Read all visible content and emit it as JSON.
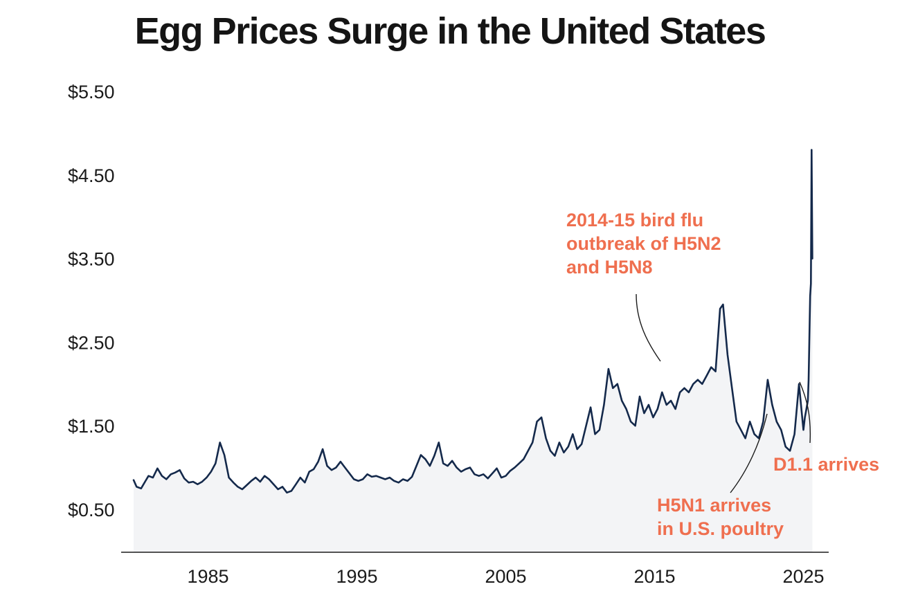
{
  "title": "Egg Prices Surge in the United States",
  "colors": {
    "line": "#14294b",
    "area": "#f3f4f6",
    "annotation": "#ef6f4f",
    "axis": "#1a1a1a"
  },
  "chart_data": {
    "type": "area",
    "title": "Egg Prices Surge in the United States",
    "xlabel": "",
    "ylabel": "",
    "xlim": [
      1980,
      2025.6
    ],
    "ylim": [
      0.0,
      5.9
    ],
    "xticks": [
      1985,
      1995,
      2005,
      2015,
      2025
    ],
    "xtick_labels": [
      "1985",
      "1995",
      "2005",
      "2015",
      "2025"
    ],
    "yticks": [
      0.5,
      1.5,
      2.5,
      3.5,
      4.5,
      5.5
    ],
    "ytick_labels": [
      "$0.50",
      "$1.50",
      "$2.50",
      "$3.50",
      "$4.50",
      "$5.50"
    ],
    "grid": false,
    "legend": "none",
    "series": [
      {
        "points": [
          [
            1980.0,
            0.85
          ],
          [
            1980.2,
            0.77
          ],
          [
            1980.5,
            0.75
          ],
          [
            1980.8,
            0.84
          ],
          [
            1981.0,
            0.9
          ],
          [
            1981.3,
            0.88
          ],
          [
            1981.6,
            0.99
          ],
          [
            1981.9,
            0.9
          ],
          [
            1982.2,
            0.86
          ],
          [
            1982.5,
            0.92
          ],
          [
            1982.8,
            0.94
          ],
          [
            1983.1,
            0.97
          ],
          [
            1983.4,
            0.87
          ],
          [
            1983.7,
            0.82
          ],
          [
            1984.0,
            0.83
          ],
          [
            1984.3,
            0.8
          ],
          [
            1984.6,
            0.83
          ],
          [
            1984.9,
            0.88
          ],
          [
            1985.2,
            0.95
          ],
          [
            1985.5,
            1.05
          ],
          [
            1985.8,
            1.3
          ],
          [
            1986.1,
            1.15
          ],
          [
            1986.4,
            0.88
          ],
          [
            1986.7,
            0.82
          ],
          [
            1987.0,
            0.77
          ],
          [
            1987.3,
            0.74
          ],
          [
            1987.6,
            0.79
          ],
          [
            1987.9,
            0.84
          ],
          [
            1988.2,
            0.88
          ],
          [
            1988.5,
            0.83
          ],
          [
            1988.8,
            0.9
          ],
          [
            1989.1,
            0.86
          ],
          [
            1989.4,
            0.8
          ],
          [
            1989.7,
            0.74
          ],
          [
            1990.0,
            0.77
          ],
          [
            1990.3,
            0.7
          ],
          [
            1990.6,
            0.72
          ],
          [
            1990.9,
            0.8
          ],
          [
            1991.2,
            0.88
          ],
          [
            1991.5,
            0.82
          ],
          [
            1991.8,
            0.95
          ],
          [
            1992.1,
            0.98
          ],
          [
            1992.4,
            1.07
          ],
          [
            1992.7,
            1.22
          ],
          [
            1993.0,
            1.02
          ],
          [
            1993.3,
            0.97
          ],
          [
            1993.6,
            1.0
          ],
          [
            1993.9,
            1.07
          ],
          [
            1994.2,
            1.0
          ],
          [
            1994.5,
            0.93
          ],
          [
            1994.8,
            0.86
          ],
          [
            1995.1,
            0.84
          ],
          [
            1995.4,
            0.86
          ],
          [
            1995.7,
            0.92
          ],
          [
            1996.0,
            0.89
          ],
          [
            1996.3,
            0.9
          ],
          [
            1996.6,
            0.88
          ],
          [
            1996.9,
            0.86
          ],
          [
            1997.2,
            0.88
          ],
          [
            1997.5,
            0.84
          ],
          [
            1997.8,
            0.82
          ],
          [
            1998.1,
            0.86
          ],
          [
            1998.4,
            0.84
          ],
          [
            1998.7,
            0.89
          ],
          [
            1999.0,
            1.02
          ],
          [
            1999.3,
            1.15
          ],
          [
            1999.6,
            1.1
          ],
          [
            1999.9,
            1.02
          ],
          [
            2000.2,
            1.14
          ],
          [
            2000.5,
            1.3
          ],
          [
            2000.8,
            1.05
          ],
          [
            2001.1,
            1.02
          ],
          [
            2001.4,
            1.08
          ],
          [
            2001.7,
            1.0
          ],
          [
            2002.0,
            0.95
          ],
          [
            2002.3,
            0.98
          ],
          [
            2002.6,
            1.0
          ],
          [
            2002.9,
            0.92
          ],
          [
            2003.2,
            0.9
          ],
          [
            2003.5,
            0.92
          ],
          [
            2003.8,
            0.87
          ],
          [
            2004.1,
            0.93
          ],
          [
            2004.4,
            0.99
          ],
          [
            2004.7,
            0.88
          ],
          [
            2005.0,
            0.9
          ],
          [
            2005.3,
            0.96
          ],
          [
            2005.6,
            1.0
          ],
          [
            2005.9,
            1.05
          ],
          [
            2006.2,
            1.1
          ],
          [
            2006.5,
            1.2
          ],
          [
            2006.8,
            1.3
          ],
          [
            2007.1,
            1.55
          ],
          [
            2007.4,
            1.6
          ],
          [
            2007.7,
            1.35
          ],
          [
            2008.0,
            1.2
          ],
          [
            2008.3,
            1.14
          ],
          [
            2008.6,
            1.3
          ],
          [
            2008.9,
            1.18
          ],
          [
            2009.2,
            1.25
          ],
          [
            2009.5,
            1.4
          ],
          [
            2009.8,
            1.22
          ],
          [
            2010.1,
            1.28
          ],
          [
            2010.4,
            1.5
          ],
          [
            2010.7,
            1.72
          ],
          [
            2011.0,
            1.4
          ],
          [
            2011.3,
            1.45
          ],
          [
            2011.6,
            1.75
          ],
          [
            2011.9,
            2.18
          ],
          [
            2012.2,
            1.95
          ],
          [
            2012.5,
            2.0
          ],
          [
            2012.8,
            1.8
          ],
          [
            2013.1,
            1.7
          ],
          [
            2013.4,
            1.55
          ],
          [
            2013.7,
            1.5
          ],
          [
            2014.0,
            1.85
          ],
          [
            2014.3,
            1.65
          ],
          [
            2014.6,
            1.75
          ],
          [
            2014.9,
            1.6
          ],
          [
            2015.2,
            1.7
          ],
          [
            2015.5,
            1.9
          ],
          [
            2015.8,
            1.75
          ],
          [
            2016.1,
            1.8
          ],
          [
            2016.4,
            1.7
          ],
          [
            2016.7,
            1.9
          ],
          [
            2017.0,
            1.95
          ],
          [
            2017.3,
            1.9
          ],
          [
            2017.6,
            2.0
          ],
          [
            2017.9,
            2.05
          ],
          [
            2018.2,
            2.0
          ],
          [
            2018.5,
            2.1
          ],
          [
            2018.8,
            2.2
          ],
          [
            2019.1,
            2.15
          ],
          [
            2019.4,
            2.9
          ],
          [
            2019.6,
            2.95
          ],
          [
            2019.9,
            2.35
          ],
          [
            2020.2,
            1.95
          ],
          [
            2020.5,
            1.55
          ],
          [
            2020.8,
            1.45
          ],
          [
            2021.1,
            1.35
          ],
          [
            2021.4,
            1.55
          ],
          [
            2021.7,
            1.4
          ],
          [
            2022.0,
            1.35
          ],
          [
            2022.3,
            1.55
          ],
          [
            2022.6,
            2.05
          ],
          [
            2022.9,
            1.75
          ],
          [
            2023.2,
            1.55
          ],
          [
            2023.5,
            1.45
          ],
          [
            2023.8,
            1.25
          ],
          [
            2024.1,
            1.2
          ],
          [
            2024.4,
            1.4
          ],
          [
            2024.7,
            2.0
          ],
          [
            2025.0,
            1.45
          ],
          [
            2025.1,
            1.6
          ],
          [
            2025.2,
            1.7
          ],
          [
            2025.3,
            1.8
          ],
          [
            2025.35,
            2.05
          ],
          [
            2025.4,
            2.55
          ],
          [
            2025.45,
            3.05
          ],
          [
            2025.5,
            3.2
          ],
          [
            2025.55,
            4.8
          ],
          [
            2025.6,
            3.5
          ]
        ]
      }
    ],
    "annotations": [
      {
        "text_lines": [
          "2014-15 bird flu",
          "outbreak of H5N2",
          "and H5N8"
        ]
      },
      {
        "text_lines": [
          "H5N1 arrives",
          "in U.S. poultry"
        ]
      },
      {
        "text_lines": [
          "D1.1 arrives"
        ]
      }
    ]
  }
}
